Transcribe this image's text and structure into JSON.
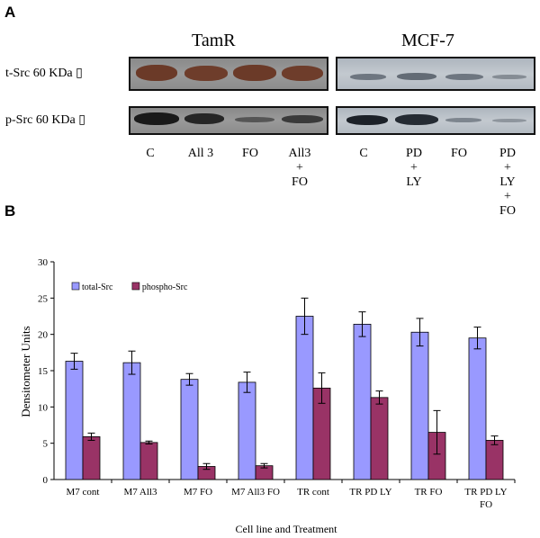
{
  "panel_a": {
    "letter": "A",
    "tamr_title": "TamR",
    "mcf_title": "MCF-7",
    "row_labels": [
      "t-Src 60 KDa ▯",
      "p-Src 60 KDa ▯"
    ],
    "tamr_lanes": [
      "C",
      "All 3",
      "FO",
      "All3\n+\nFO"
    ],
    "mcf_lanes": [
      "C",
      "PD\n+\nLY",
      "FO",
      "PD\n+\nLY\n+\nFO"
    ]
  },
  "panel_b": {
    "letter": "B"
  },
  "chart_data": {
    "type": "bar",
    "xlabel": "Cell line and Treatment",
    "ylabel": "Densitometer Units",
    "ylim": [
      0,
      30
    ],
    "yticks": [
      0,
      5,
      10,
      15,
      20,
      25,
      30
    ],
    "grid": false,
    "legend_placement": "top-left",
    "categories": [
      "M7 cont",
      "M7 All3",
      "M7 FO",
      "M7 All3 FO",
      "TR cont",
      "TR PD LY",
      "TR FO",
      "TR PD LY\nFO"
    ],
    "series": [
      {
        "name": "total-Src",
        "color": "#9999ff",
        "values": [
          16.3,
          16.1,
          13.8,
          13.4,
          22.5,
          21.4,
          20.3,
          19.5
        ],
        "errors": [
          1.1,
          1.6,
          0.8,
          1.4,
          2.5,
          1.7,
          1.9,
          1.5
        ]
      },
      {
        "name": "phospho-Src",
        "color": "#993366",
        "values": [
          5.9,
          5.1,
          1.8,
          1.9,
          12.6,
          11.3,
          6.5,
          5.4
        ],
        "errors": [
          0.5,
          0.2,
          0.4,
          0.3,
          2.1,
          0.9,
          3.0,
          0.6
        ]
      }
    ]
  }
}
